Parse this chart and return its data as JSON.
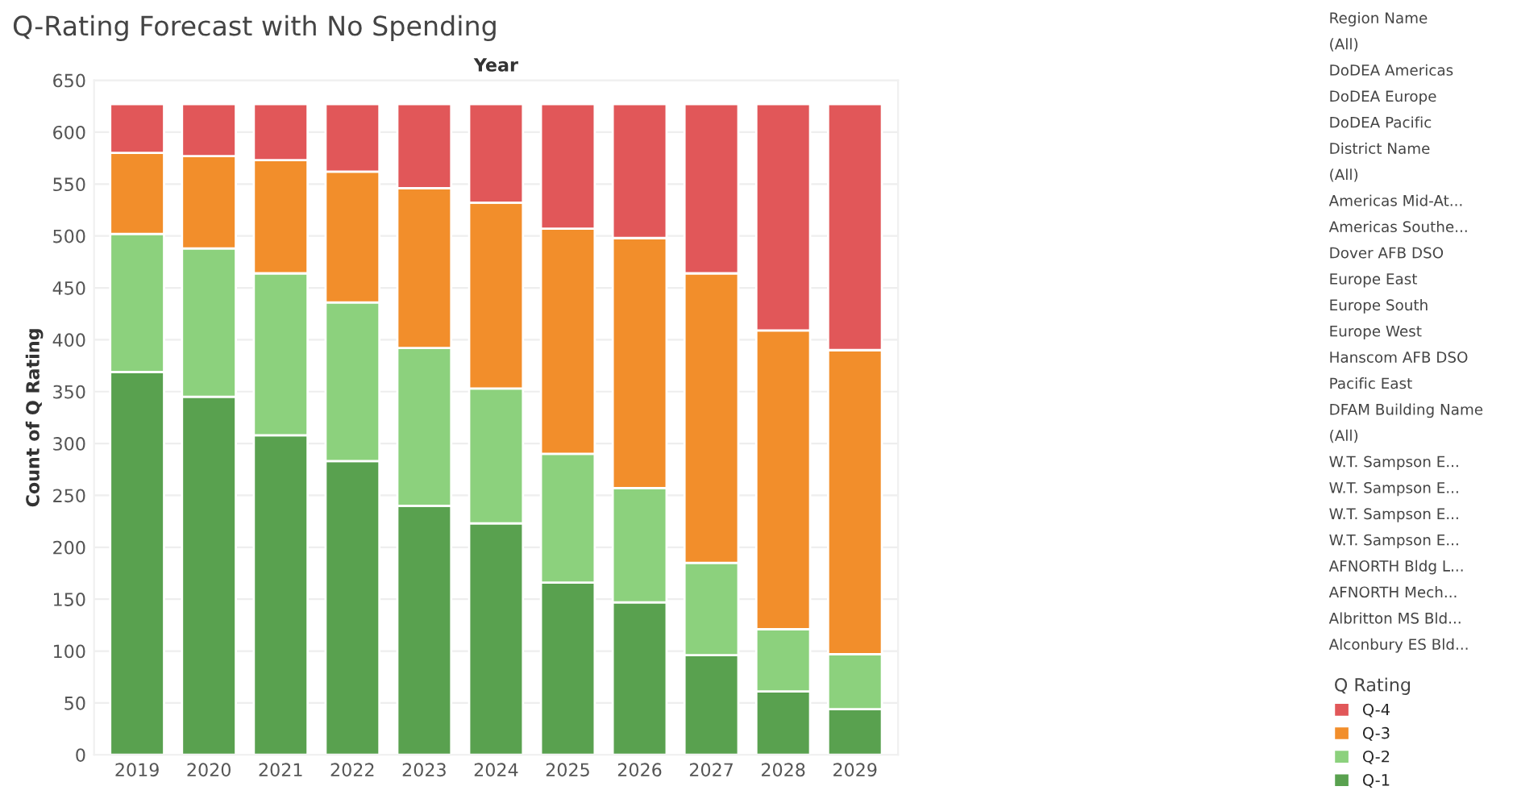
{
  "chart_data": {
    "type": "bar",
    "title": "Q-Rating Forecast with No Spending",
    "xlabel": "Year",
    "ylabel": "Count of Q Rating",
    "categories": [
      "2019",
      "2020",
      "2021",
      "2022",
      "2023",
      "2024",
      "2025",
      "2026",
      "2027",
      "2028",
      "2029"
    ],
    "stacked": true,
    "series": [
      {
        "name": "Q-1",
        "color": "#59a14f",
        "values": [
          369,
          345,
          308,
          283,
          240,
          223,
          166,
          147,
          96,
          61,
          44
        ]
      },
      {
        "name": "Q-2",
        "color": "#8cd17d",
        "values": [
          133,
          143,
          156,
          153,
          152,
          130,
          124,
          110,
          89,
          60,
          53
        ]
      },
      {
        "name": "Q-3",
        "color": "#f28e2b",
        "values": [
          78,
          89,
          109,
          126,
          154,
          179,
          217,
          241,
          279,
          288,
          293
        ]
      },
      {
        "name": "Q-4",
        "color": "#e15759",
        "values": [
          47,
          50,
          54,
          65,
          81,
          95,
          120,
          129,
          163,
          218,
          237
        ]
      }
    ],
    "ylim": [
      0,
      650
    ],
    "yticks": [
      0,
      50,
      100,
      150,
      200,
      250,
      300,
      350,
      400,
      450,
      500,
      550,
      600,
      650
    ],
    "grid": "y",
    "legend": "right",
    "legend_title": "Q Rating",
    "annotations": [
      "Region Name",
      "(All)",
      "DoDEA Americas",
      "DoDEA Europe",
      "DoDEA Pacific",
      "District Name",
      "(All)",
      "Americas Mid-At...",
      "Americas Southe...",
      "Dover AFB DSO",
      "Europe East",
      "Europe South",
      "Europe West",
      "Hanscom AFB DSO",
      "Pacific East",
      "DFAM Building Name",
      "(All)",
      "W.T. Sampson E...",
      "W.T. Sampson E...",
      "W.T. Sampson E...",
      "W.T. Sampson E...",
      "AFNORTH Bldg L...",
      "AFNORTH Mech...",
      "Albritton MS Bld...",
      "Alconbury ES Bld..."
    ]
  }
}
